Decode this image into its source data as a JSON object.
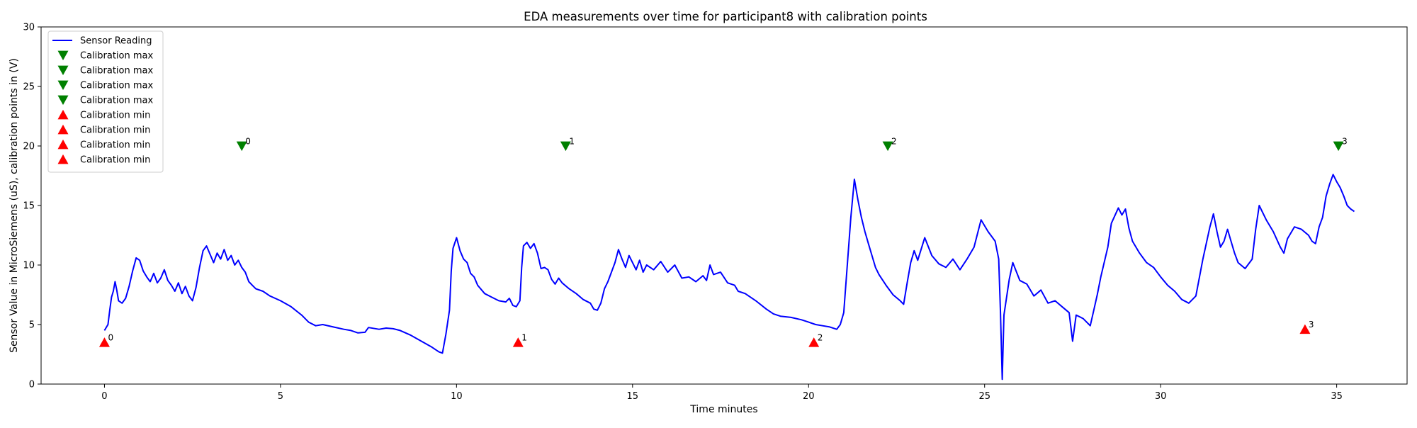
{
  "chart_data": {
    "type": "line",
    "title": "EDA measurements over time for participant8 with calibration points",
    "xlabel": "Time minutes",
    "ylabel": "Sensor Value in MicroSiemens (uS), calibration points in (V)",
    "xlim": [
      -1.8,
      37.0
    ],
    "ylim": [
      0,
      30
    ],
    "x_ticks": [
      0,
      5,
      10,
      15,
      20,
      25,
      30,
      35
    ],
    "y_ticks": [
      0,
      5,
      10,
      15,
      20,
      25,
      30
    ],
    "legend_position": "top-left",
    "grid": false,
    "colors": {
      "line": "#0000ff",
      "max": "#008000",
      "min": "#ff0000"
    },
    "series": [
      {
        "name": "Sensor Reading",
        "type": "line",
        "points": [
          [
            0.0,
            4.5
          ],
          [
            0.1,
            5.0
          ],
          [
            0.15,
            6.2
          ],
          [
            0.2,
            7.3
          ],
          [
            0.25,
            7.8
          ],
          [
            0.3,
            8.6
          ],
          [
            0.35,
            7.9
          ],
          [
            0.4,
            7.0
          ],
          [
            0.5,
            6.8
          ],
          [
            0.6,
            7.2
          ],
          [
            0.7,
            8.2
          ],
          [
            0.8,
            9.5
          ],
          [
            0.9,
            10.6
          ],
          [
            1.0,
            10.4
          ],
          [
            1.1,
            9.5
          ],
          [
            1.2,
            9.0
          ],
          [
            1.3,
            8.6
          ],
          [
            1.4,
            9.3
          ],
          [
            1.5,
            8.5
          ],
          [
            1.6,
            8.9
          ],
          [
            1.7,
            9.6
          ],
          [
            1.8,
            8.7
          ],
          [
            1.9,
            8.3
          ],
          [
            2.0,
            7.8
          ],
          [
            2.1,
            8.5
          ],
          [
            2.2,
            7.6
          ],
          [
            2.3,
            8.2
          ],
          [
            2.4,
            7.4
          ],
          [
            2.5,
            7.0
          ],
          [
            2.6,
            8.1
          ],
          [
            2.7,
            9.8
          ],
          [
            2.8,
            11.2
          ],
          [
            2.9,
            11.6
          ],
          [
            3.0,
            10.9
          ],
          [
            3.1,
            10.2
          ],
          [
            3.2,
            11.0
          ],
          [
            3.3,
            10.5
          ],
          [
            3.4,
            11.3
          ],
          [
            3.5,
            10.4
          ],
          [
            3.6,
            10.8
          ],
          [
            3.7,
            10.0
          ],
          [
            3.8,
            10.4
          ],
          [
            3.9,
            9.8
          ],
          [
            4.0,
            9.4
          ],
          [
            4.1,
            8.6
          ],
          [
            4.2,
            8.3
          ],
          [
            4.3,
            8.0
          ],
          [
            4.5,
            7.8
          ],
          [
            4.7,
            7.4
          ],
          [
            5.0,
            7.0
          ],
          [
            5.3,
            6.5
          ],
          [
            5.6,
            5.8
          ],
          [
            5.8,
            5.2
          ],
          [
            6.0,
            4.9
          ],
          [
            6.2,
            5.0
          ],
          [
            6.5,
            4.8
          ],
          [
            6.8,
            4.6
          ],
          [
            7.0,
            4.5
          ],
          [
            7.2,
            4.3
          ],
          [
            7.4,
            4.35
          ],
          [
            7.5,
            4.75
          ],
          [
            7.8,
            4.6
          ],
          [
            8.0,
            4.7
          ],
          [
            8.2,
            4.65
          ],
          [
            8.4,
            4.5
          ],
          [
            8.7,
            4.1
          ],
          [
            9.0,
            3.6
          ],
          [
            9.3,
            3.1
          ],
          [
            9.5,
            2.7
          ],
          [
            9.6,
            2.6
          ],
          [
            9.7,
            4.2
          ],
          [
            9.8,
            6.2
          ],
          [
            9.85,
            9.5
          ],
          [
            9.9,
            11.4
          ],
          [
            10.0,
            12.3
          ],
          [
            10.1,
            11.2
          ],
          [
            10.2,
            10.5
          ],
          [
            10.3,
            10.2
          ],
          [
            10.4,
            9.3
          ],
          [
            10.5,
            9.0
          ],
          [
            10.6,
            8.3
          ],
          [
            10.8,
            7.6
          ],
          [
            11.0,
            7.3
          ],
          [
            11.2,
            7.0
          ],
          [
            11.4,
            6.9
          ],
          [
            11.5,
            7.2
          ],
          [
            11.6,
            6.6
          ],
          [
            11.7,
            6.5
          ],
          [
            11.8,
            7.0
          ],
          [
            11.85,
            9.8
          ],
          [
            11.9,
            11.6
          ],
          [
            12.0,
            11.9
          ],
          [
            12.1,
            11.4
          ],
          [
            12.2,
            11.8
          ],
          [
            12.3,
            11.0
          ],
          [
            12.4,
            9.7
          ],
          [
            12.5,
            9.8
          ],
          [
            12.6,
            9.6
          ],
          [
            12.7,
            8.8
          ],
          [
            12.8,
            8.4
          ],
          [
            12.9,
            8.9
          ],
          [
            13.0,
            8.5
          ],
          [
            13.2,
            8.0
          ],
          [
            13.4,
            7.6
          ],
          [
            13.6,
            7.1
          ],
          [
            13.8,
            6.8
          ],
          [
            13.9,
            6.3
          ],
          [
            14.0,
            6.2
          ],
          [
            14.1,
            6.8
          ],
          [
            14.2,
            8.0
          ],
          [
            14.3,
            8.6
          ],
          [
            14.4,
            9.4
          ],
          [
            14.5,
            10.2
          ],
          [
            14.6,
            11.3
          ],
          [
            14.7,
            10.5
          ],
          [
            14.8,
            9.8
          ],
          [
            14.9,
            10.8
          ],
          [
            15.0,
            10.2
          ],
          [
            15.1,
            9.6
          ],
          [
            15.2,
            10.4
          ],
          [
            15.3,
            9.4
          ],
          [
            15.4,
            10.0
          ],
          [
            15.6,
            9.6
          ],
          [
            15.8,
            10.3
          ],
          [
            16.0,
            9.4
          ],
          [
            16.2,
            10.0
          ],
          [
            16.4,
            8.9
          ],
          [
            16.6,
            9.0
          ],
          [
            16.8,
            8.6
          ],
          [
            17.0,
            9.1
          ],
          [
            17.1,
            8.7
          ],
          [
            17.2,
            10.0
          ],
          [
            17.3,
            9.2
          ],
          [
            17.5,
            9.4
          ],
          [
            17.7,
            8.5
          ],
          [
            17.9,
            8.3
          ],
          [
            18.0,
            7.8
          ],
          [
            18.2,
            7.6
          ],
          [
            18.5,
            7.0
          ],
          [
            18.8,
            6.3
          ],
          [
            19.0,
            5.9
          ],
          [
            19.2,
            5.7
          ],
          [
            19.5,
            5.6
          ],
          [
            19.8,
            5.4
          ],
          [
            20.0,
            5.2
          ],
          [
            20.2,
            5.0
          ],
          [
            20.4,
            4.9
          ],
          [
            20.6,
            4.8
          ],
          [
            20.8,
            4.6
          ],
          [
            20.9,
            5.0
          ],
          [
            21.0,
            6.0
          ],
          [
            21.1,
            10.0
          ],
          [
            21.2,
            14.0
          ],
          [
            21.3,
            17.2
          ],
          [
            21.4,
            15.5
          ],
          [
            21.5,
            14.0
          ],
          [
            21.6,
            12.8
          ],
          [
            21.7,
            11.8
          ],
          [
            21.8,
            10.8
          ],
          [
            21.9,
            9.8
          ],
          [
            22.0,
            9.2
          ],
          [
            22.2,
            8.3
          ],
          [
            22.4,
            7.5
          ],
          [
            22.6,
            7.0
          ],
          [
            22.7,
            6.7
          ],
          [
            22.8,
            8.5
          ],
          [
            22.9,
            10.2
          ],
          [
            23.0,
            11.2
          ],
          [
            23.1,
            10.4
          ],
          [
            23.3,
            12.3
          ],
          [
            23.5,
            10.8
          ],
          [
            23.7,
            10.1
          ],
          [
            23.9,
            9.8
          ],
          [
            24.1,
            10.5
          ],
          [
            24.3,
            9.6
          ],
          [
            24.5,
            10.5
          ],
          [
            24.7,
            11.5
          ],
          [
            24.9,
            13.8
          ],
          [
            25.1,
            12.8
          ],
          [
            25.3,
            12.0
          ],
          [
            25.4,
            10.5
          ],
          [
            25.45,
            6.0
          ],
          [
            25.5,
            0.4
          ],
          [
            25.55,
            5.8
          ],
          [
            25.7,
            8.8
          ],
          [
            25.8,
            10.2
          ],
          [
            26.0,
            8.7
          ],
          [
            26.2,
            8.4
          ],
          [
            26.4,
            7.4
          ],
          [
            26.6,
            7.9
          ],
          [
            26.8,
            6.8
          ],
          [
            27.0,
            7.0
          ],
          [
            27.2,
            6.5
          ],
          [
            27.4,
            6.0
          ],
          [
            27.5,
            3.6
          ],
          [
            27.6,
            5.8
          ],
          [
            27.8,
            5.5
          ],
          [
            28.0,
            4.9
          ],
          [
            28.1,
            6.2
          ],
          [
            28.2,
            7.5
          ],
          [
            28.3,
            9.0
          ],
          [
            28.5,
            11.5
          ],
          [
            28.6,
            13.5
          ],
          [
            28.8,
            14.8
          ],
          [
            28.9,
            14.2
          ],
          [
            29.0,
            14.7
          ],
          [
            29.1,
            13.1
          ],
          [
            29.2,
            12.0
          ],
          [
            29.4,
            11.0
          ],
          [
            29.6,
            10.2
          ],
          [
            29.8,
            9.8
          ],
          [
            30.0,
            9.0
          ],
          [
            30.2,
            8.3
          ],
          [
            30.4,
            7.8
          ],
          [
            30.6,
            7.1
          ],
          [
            30.8,
            6.8
          ],
          [
            31.0,
            7.4
          ],
          [
            31.2,
            10.5
          ],
          [
            31.4,
            13.2
          ],
          [
            31.5,
            14.3
          ],
          [
            31.6,
            12.8
          ],
          [
            31.7,
            11.5
          ],
          [
            31.8,
            12.0
          ],
          [
            31.9,
            13.0
          ],
          [
            32.0,
            12.0
          ],
          [
            32.1,
            11.0
          ],
          [
            32.2,
            10.2
          ],
          [
            32.4,
            9.7
          ],
          [
            32.6,
            10.5
          ],
          [
            32.7,
            13.0
          ],
          [
            32.8,
            15.0
          ],
          [
            33.0,
            13.8
          ],
          [
            33.2,
            12.8
          ],
          [
            33.4,
            11.5
          ],
          [
            33.5,
            11.0
          ],
          [
            33.6,
            12.2
          ],
          [
            33.8,
            13.2
          ],
          [
            34.0,
            13.0
          ],
          [
            34.2,
            12.5
          ],
          [
            34.3,
            12.0
          ],
          [
            34.4,
            11.8
          ],
          [
            34.5,
            13.2
          ],
          [
            34.6,
            14.0
          ],
          [
            34.7,
            15.8
          ],
          [
            34.8,
            16.8
          ],
          [
            34.9,
            17.6
          ],
          [
            35.0,
            17.0
          ],
          [
            35.1,
            16.5
          ],
          [
            35.2,
            15.8
          ],
          [
            35.3,
            15.0
          ],
          [
            35.4,
            14.7
          ],
          [
            35.5,
            14.5
          ]
        ]
      },
      {
        "name": "Calibration max",
        "type": "marker",
        "marker": "triangle-down",
        "x": 3.9,
        "y": 20.0,
        "label": "0"
      },
      {
        "name": "Calibration max",
        "type": "marker",
        "marker": "triangle-down",
        "x": 13.1,
        "y": 20.0,
        "label": "1"
      },
      {
        "name": "Calibration max",
        "type": "marker",
        "marker": "triangle-down",
        "x": 22.25,
        "y": 20.0,
        "label": "2"
      },
      {
        "name": "Calibration max",
        "type": "marker",
        "marker": "triangle-down",
        "x": 35.05,
        "y": 20.0,
        "label": "3"
      },
      {
        "name": "Calibration min",
        "type": "marker",
        "marker": "triangle-up",
        "x": 0.0,
        "y": 3.5,
        "label": "0"
      },
      {
        "name": "Calibration min",
        "type": "marker",
        "marker": "triangle-up",
        "x": 11.75,
        "y": 3.5,
        "label": "1"
      },
      {
        "name": "Calibration min",
        "type": "marker",
        "marker": "triangle-up",
        "x": 20.15,
        "y": 3.5,
        "label": "2"
      },
      {
        "name": "Calibration min",
        "type": "marker",
        "marker": "triangle-up",
        "x": 34.1,
        "y": 4.6,
        "label": "3"
      }
    ]
  }
}
